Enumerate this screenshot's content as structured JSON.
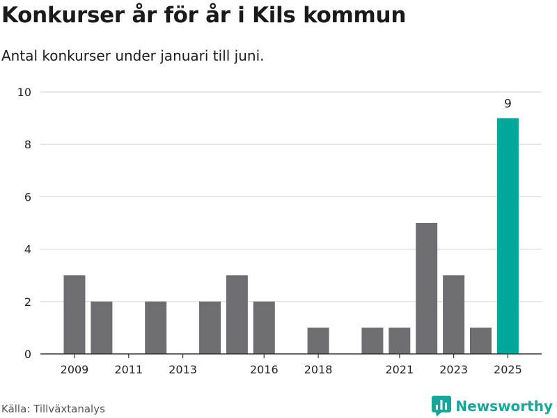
{
  "header": {
    "title": "Konkurser år för år i Kils kommun",
    "subtitle": "Antal konkurser under januari till juni."
  },
  "footer": {
    "source": "Källa: Tillväxtanalys",
    "brand": "Newsworthy",
    "brand_icon": "bar-chart-logo-icon"
  },
  "colors": {
    "bar": "#6e6d72",
    "highlight": "#00a89b",
    "grid": "#d9d9d9",
    "brand": "#17a79a"
  },
  "chart_data": {
    "type": "bar",
    "title": "Konkurser år för år i Kils kommun",
    "subtitle": "Antal konkurser under januari till juni.",
    "categories": [
      "2009",
      "2010",
      "2011",
      "2012",
      "2013",
      "2014",
      "2015",
      "2016",
      "2017",
      "2018",
      "2019",
      "2020",
      "2021",
      "2022",
      "2023",
      "2024",
      "2025"
    ],
    "values": [
      3,
      2,
      0,
      2,
      0,
      2,
      3,
      2,
      0,
      1,
      0,
      1,
      1,
      5,
      3,
      1,
      9
    ],
    "highlight_index": 16,
    "data_labels": [
      {
        "index": 16,
        "text": "9"
      }
    ],
    "x_tick_labels": [
      "2009",
      "2011",
      "2013",
      "2016",
      "2018",
      "2021",
      "2023",
      "2025"
    ],
    "y_ticks": [
      0,
      2,
      4,
      6,
      8,
      10
    ],
    "ylim": [
      0,
      10
    ],
    "xlabel": "",
    "ylabel": "",
    "grid": true,
    "legend": "none"
  }
}
